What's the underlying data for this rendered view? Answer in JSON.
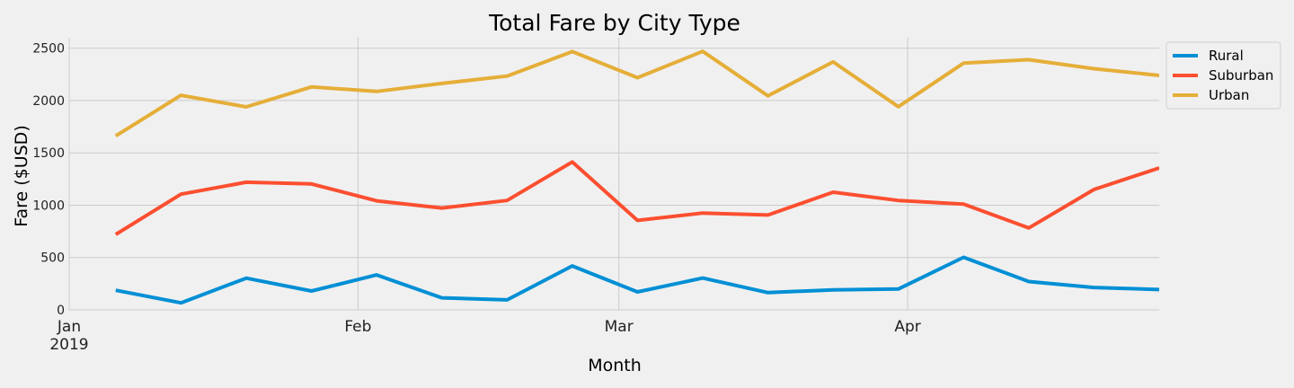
{
  "chart_data": {
    "type": "line",
    "title": "Total Fare by City Type",
    "xlabel": "Month",
    "ylabel": "Fare ($USD)",
    "x": [
      "2019-01-06",
      "2019-01-13",
      "2019-01-20",
      "2019-01-27",
      "2019-02-03",
      "2019-02-10",
      "2019-02-17",
      "2019-02-24",
      "2019-03-03",
      "2019-03-10",
      "2019-03-17",
      "2019-03-24",
      "2019-03-31",
      "2019-04-07",
      "2019-04-14",
      "2019-04-21",
      "2019-04-28"
    ],
    "x_range": [
      "2019-01-01",
      "2019-04-28"
    ],
    "xticks": [
      {
        "date": "2019-01-01",
        "label": "Jan",
        "sublabel": "2019"
      },
      {
        "date": "2019-02-01",
        "label": "Feb",
        "sublabel": ""
      },
      {
        "date": "2019-03-01",
        "label": "Mar",
        "sublabel": ""
      },
      {
        "date": "2019-04-01",
        "label": "Apr",
        "sublabel": ""
      }
    ],
    "ylim": [
      0,
      2600
    ],
    "yticks": [
      0,
      500,
      1000,
      1500,
      2000,
      2500
    ],
    "grid": true,
    "legend_position": "top-right",
    "series": [
      {
        "name": "Rural",
        "color": "#008fd5",
        "values": [
          187,
          67,
          303,
          180,
          334,
          115,
          95,
          420,
          172,
          304,
          165,
          191,
          199,
          502,
          270,
          214,
          194
        ]
      },
      {
        "name": "Suburban",
        "color": "#fc4f30",
        "values": [
          721,
          1105,
          1219,
          1203,
          1042,
          973,
          1045,
          1413,
          855,
          925,
          906,
          1124,
          1045,
          1010,
          783,
          1150,
          1356
        ]
      },
      {
        "name": "Urban",
        "color": "#e5ae38",
        "values": [
          1662,
          2050,
          1939,
          2130,
          2087,
          2163,
          2234,
          2468,
          2218,
          2470,
          2045,
          2369,
          1941,
          2357,
          2390,
          2304,
          2240
        ]
      }
    ]
  }
}
